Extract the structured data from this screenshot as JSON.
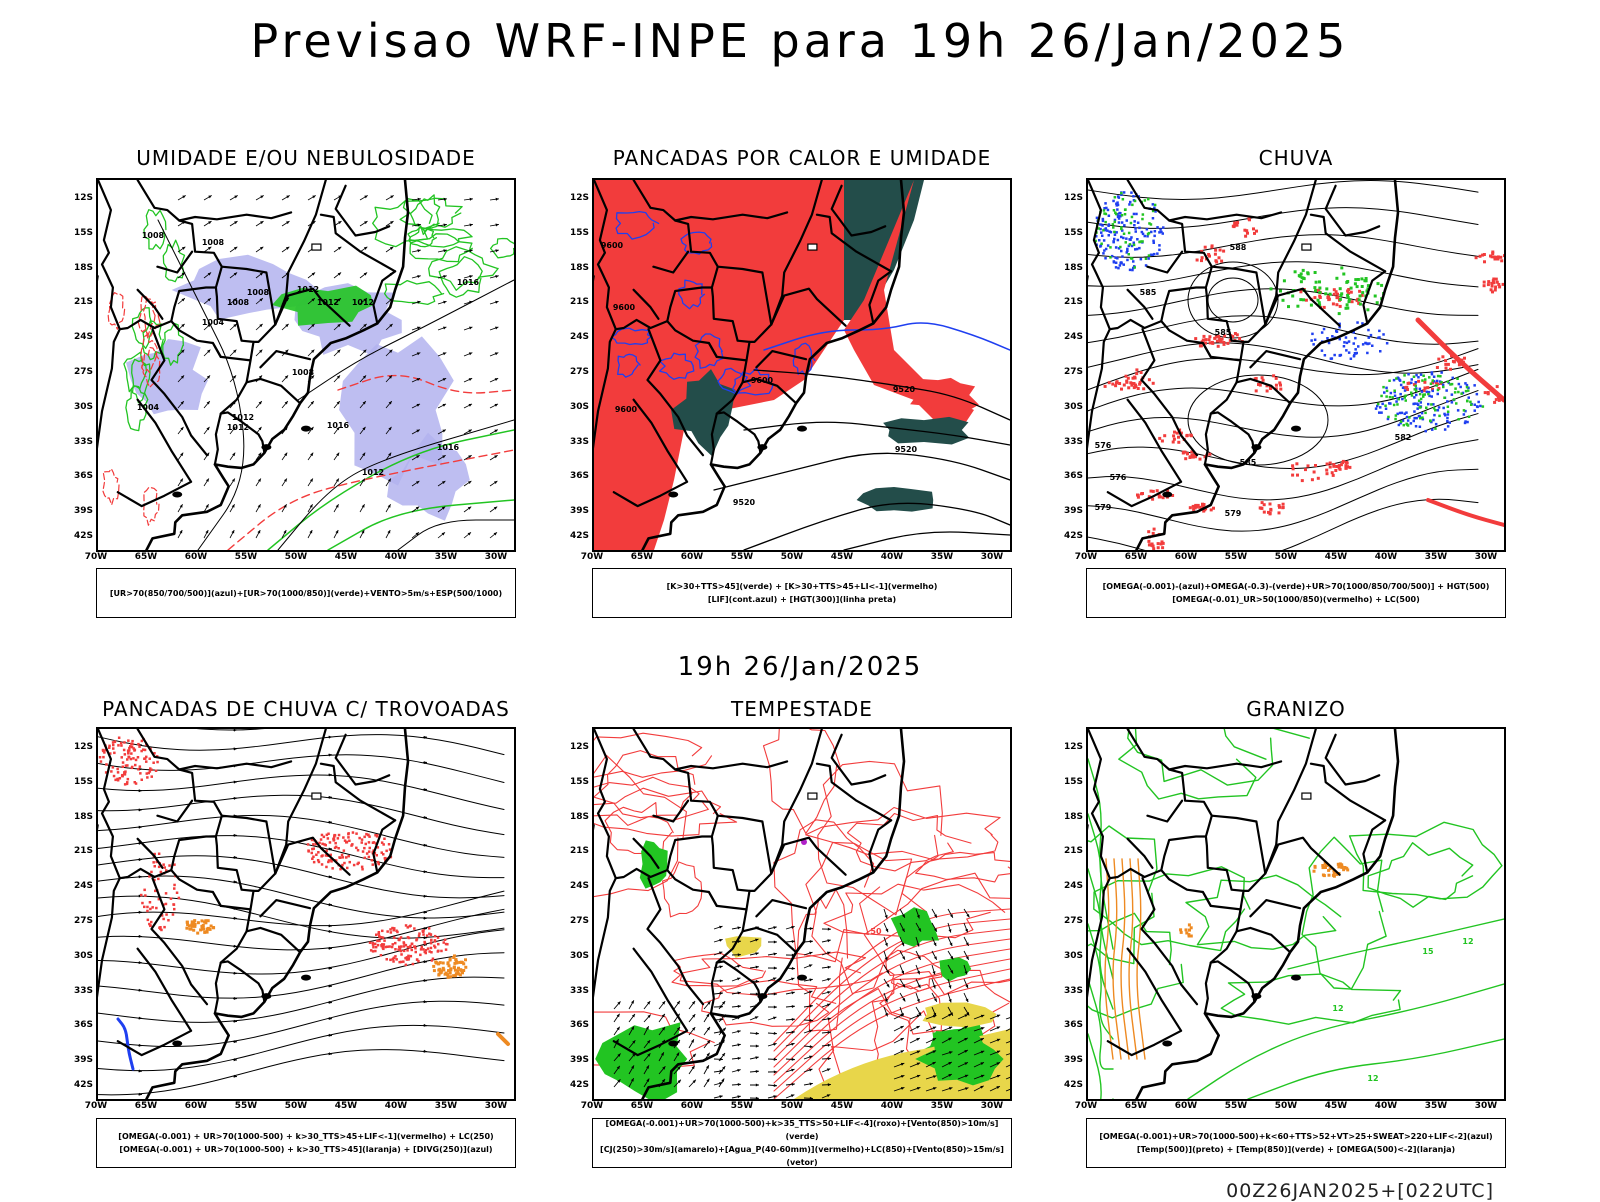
{
  "title": "Previsao WRF-INPE  para 19h 26/Jan/2025",
  "subtitle": "19h 26/Jan/2025",
  "footer": "00Z26JAN2025+[022UTC]",
  "axes": {
    "lat_labels": [
      "12S",
      "15S",
      "18S",
      "21S",
      "24S",
      "27S",
      "30S",
      "33S",
      "36S",
      "39S",
      "42S"
    ],
    "lon_labels": [
      "70W",
      "65W",
      "60W",
      "55W",
      "50W",
      "45W",
      "40W",
      "35W",
      "30W"
    ]
  },
  "colors": {
    "red": "#f23c3c",
    "green": "#22c422",
    "blue": "#1f3ff0",
    "lavender": "#b3b3ee",
    "darkteal": "#234d4a",
    "orange": "#ee8a22",
    "yellow": "#e8d64a",
    "purple": "#b020c8"
  },
  "panels": [
    {
      "title": "UMIDADE E/OU NEBULOSIDADE",
      "legend": [
        "[UR>70(850/700/500)](azul)+[UR>70(1000/850)](verde)+VENTO>5m/s+ESP(500/1000)"
      ],
      "labels": [
        "1008",
        "1008",
        "1008",
        "1008",
        "1004",
        "1012",
        "1012",
        "1012",
        "1016",
        "1016",
        "1016",
        "1012",
        "1012",
        "1008",
        "1012",
        "1004"
      ]
    },
    {
      "title": "PANCADAS POR CALOR E UMIDADE",
      "legend": [
        "[K>30+TTS>45](verde) + [K>30+TTS>45+LI<-1](vermelho)",
        "[LIF](cont.azul) + [HGT(300)](linha preta)"
      ],
      "labels": [
        "9600",
        "9600",
        "9600",
        "9600",
        "9520",
        "9520",
        "9520"
      ]
    },
    {
      "title": "CHUVA",
      "legend": [
        "[OMEGA(-0.001)-(azul)+OMEGA(-0.3)-(verde)+UR>70(1000/850/700/500)] + HGT(500)",
        "[OMEGA(-0.01)_UR>50(1000/850)(vermelho) + LC(500)"
      ],
      "labels": [
        "588",
        "585",
        "585",
        "585",
        "579",
        "582",
        "576",
        "576",
        "579"
      ]
    },
    {
      "title": "PANCADAS DE CHUVA C/ TROVOADAS",
      "legend": [
        "[OMEGA(-0.001) + UR>70(1000-500) + k>30_TTS>45+LIF<-1](vermelho) + LC(250)",
        "[OMEGA(-0.001) + UR>70(1000-500) + k>30_TTS>45](laranja) + [DIVG(250)](azul)"
      ],
      "labels": []
    },
    {
      "title": "TEMPESTADE",
      "legend": [
        "[OMEGA(-0.001)+UR>70(1000-500)+k>35_TTS>50+LIF<-4](roxo)+[Vento(850)>10m/s](verde)",
        "[CJ(250)>30m/s](amarelo)+[Agua_P(40-60mm)](vermelho)+LC(850)+[Vento(850)>15m/s](vetor)"
      ],
      "labels": [
        "50"
      ]
    },
    {
      "title": "GRANIZO",
      "legend": [
        "[OMEGA(-0.001)+UR>70(1000-500)+k<60+TTS>52+VT>25+SWEAT>220+LIF<-2](azul)",
        "[Temp(500)](preto) + [Temp(850)](verde) + [OMEGA(500)<-2](laranja)"
      ],
      "labels": [
        "15",
        "12",
        "12",
        "12"
      ]
    }
  ]
}
